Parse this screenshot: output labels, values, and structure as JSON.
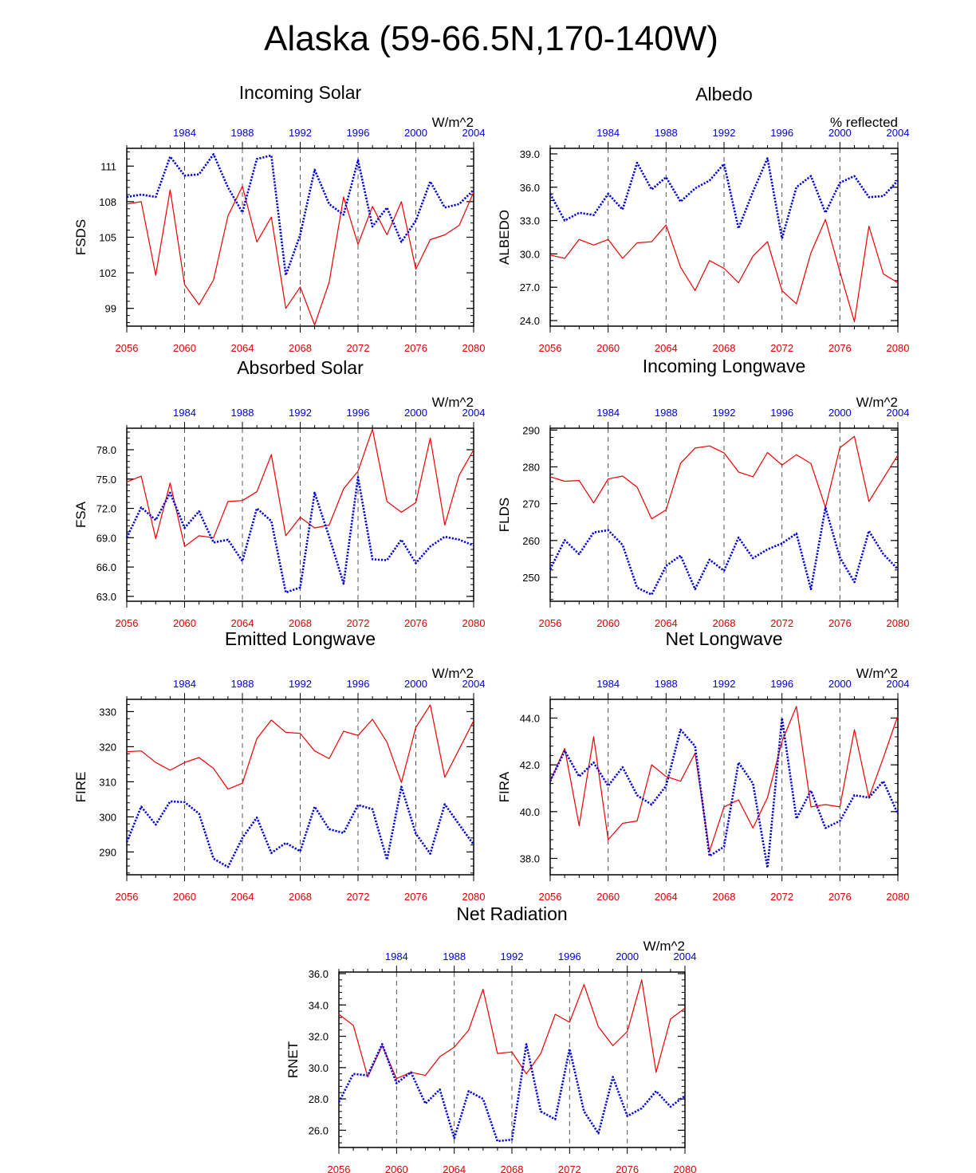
{
  "title": "Alaska (59-66.5N,170-140W)",
  "colors": {
    "future": "#ee0000",
    "historical": "#0000dd",
    "axis": "#000000",
    "grid": "#555555"
  },
  "chart_data": [
    {
      "type": "line",
      "id": "fsds",
      "title": "Incoming Solar",
      "ylabel": "FSDS",
      "units": "W/m^2",
      "ylim": [
        97.5,
        112.5
      ],
      "yticks": [
        99,
        102,
        105,
        108,
        111
      ],
      "ytick_labels": [
        "99",
        "102",
        "105",
        "108",
        "111"
      ],
      "x_bottom": {
        "range": [
          2056,
          2080
        ],
        "ticks": [
          2056,
          2060,
          2064,
          2068,
          2072,
          2076,
          2080
        ]
      },
      "x_top": {
        "range": [
          1980,
          2004
        ],
        "ticks": [
          1984,
          1988,
          1992,
          1996,
          2000,
          2004
        ]
      },
      "grid": "vertical dashed at labeled bottom ticks",
      "series": [
        {
          "style": "solid",
          "axis": "bottom",
          "values": [
            107.8,
            108.0,
            101.8,
            109.0,
            101.0,
            99.3,
            101.4,
            106.8,
            109.3,
            104.6,
            106.7,
            99.0,
            100.8,
            97.6,
            101.2,
            108.4,
            104.4,
            107.6,
            105.2,
            108.0,
            102.3,
            104.8,
            105.2,
            106.0,
            108.8
          ]
        },
        {
          "style": "dotted",
          "axis": "top",
          "values": [
            108.4,
            108.6,
            108.4,
            111.8,
            110.2,
            110.3,
            112.0,
            109.2,
            107.1,
            111.6,
            111.9,
            101.8,
            105.2,
            110.7,
            107.8,
            106.9,
            111.5,
            105.9,
            107.5,
            104.6,
            106.4,
            109.7,
            107.5,
            107.8,
            109.0
          ]
        }
      ]
    },
    {
      "type": "line",
      "id": "albedo",
      "title": "Albedo",
      "ylabel": "ALBEDO",
      "units": "% reflected",
      "ylim": [
        23.5,
        39.5
      ],
      "yticks": [
        24,
        27,
        30,
        33,
        36,
        39
      ],
      "ytick_labels": [
        "24.0",
        "27.0",
        "30.0",
        "33.0",
        "36.0",
        "39.0"
      ],
      "x_bottom": {
        "range": [
          2056,
          2080
        ],
        "ticks": [
          2056,
          2060,
          2064,
          2068,
          2072,
          2076,
          2080
        ]
      },
      "x_top": {
        "range": [
          1980,
          2004
        ],
        "ticks": [
          1984,
          1988,
          1992,
          1996,
          2000,
          2004
        ]
      },
      "grid": "vertical dashed at labeled bottom ticks",
      "series": [
        {
          "style": "solid",
          "axis": "bottom",
          "values": [
            29.9,
            29.6,
            31.3,
            30.8,
            31.3,
            29.6,
            31.0,
            31.1,
            32.6,
            28.8,
            26.7,
            29.4,
            28.7,
            27.4,
            29.8,
            31.1,
            26.7,
            25.5,
            30.1,
            33.1,
            28.4,
            23.9,
            32.5,
            28.2,
            27.4
          ]
        },
        {
          "style": "dotted",
          "axis": "top",
          "values": [
            35.4,
            33.0,
            33.7,
            33.5,
            35.4,
            34.0,
            38.2,
            35.8,
            36.9,
            34.7,
            35.9,
            36.6,
            38.1,
            32.3,
            35.6,
            38.6,
            31.4,
            36.0,
            37.0,
            33.7,
            36.4,
            37.0,
            35.1,
            35.2,
            36.6
          ]
        }
      ]
    },
    {
      "type": "line",
      "id": "fsa",
      "title": "Absorbed Solar",
      "ylabel": "FSA",
      "units": "W/m^2",
      "ylim": [
        62.5,
        80.2
      ],
      "yticks": [
        63,
        66,
        69,
        72,
        75,
        78
      ],
      "ytick_labels": [
        "63.0",
        "66.0",
        "69.0",
        "72.0",
        "75.0",
        "78.0"
      ],
      "x_bottom": {
        "range": [
          2056,
          2080
        ],
        "ticks": [
          2056,
          2060,
          2064,
          2068,
          2072,
          2076,
          2080
        ]
      },
      "x_top": {
        "range": [
          1980,
          2004
        ],
        "ticks": [
          1984,
          1988,
          1992,
          1996,
          2000,
          2004
        ]
      },
      "grid": "vertical dashed at labeled bottom ticks",
      "series": [
        {
          "style": "solid",
          "axis": "bottom",
          "values": [
            74.7,
            75.3,
            68.9,
            74.6,
            68.1,
            69.2,
            69.0,
            72.7,
            72.8,
            73.7,
            77.5,
            69.2,
            71.1,
            70.0,
            70.3,
            74.0,
            75.8,
            80.1,
            72.7,
            71.6,
            72.6,
            79.2,
            70.3,
            75.4,
            78.0
          ]
        },
        {
          "style": "dotted",
          "axis": "top",
          "values": [
            69.0,
            72.1,
            70.8,
            73.6,
            70.0,
            71.7,
            68.5,
            68.8,
            66.6,
            72.0,
            70.7,
            63.4,
            63.9,
            73.6,
            69.1,
            64.3,
            75.2,
            66.8,
            66.7,
            68.8,
            66.4,
            68.1,
            69.1,
            68.8,
            68.2
          ]
        }
      ]
    },
    {
      "type": "line",
      "id": "flds",
      "title": "Incoming Longwave",
      "ylabel": "FLDS",
      "units": "W/m^2",
      "ylim": [
        243.5,
        290.5
      ],
      "yticks": [
        250,
        260,
        270,
        280,
        290
      ],
      "ytick_labels": [
        "250",
        "260",
        "270",
        "280",
        "290"
      ],
      "x_bottom": {
        "range": [
          2056,
          2080
        ],
        "ticks": [
          2056,
          2060,
          2064,
          2068,
          2072,
          2076,
          2080
        ]
      },
      "x_top": {
        "range": [
          1980,
          2004
        ],
        "ticks": [
          1984,
          1988,
          1992,
          1996,
          2000,
          2004
        ]
      },
      "grid": "vertical dashed at labeled bottom ticks",
      "series": [
        {
          "style": "solid",
          "axis": "bottom",
          "values": [
            277.3,
            276.1,
            276.3,
            270.2,
            276.7,
            277.5,
            274.5,
            265.9,
            268.3,
            281.0,
            285.1,
            285.7,
            283.8,
            278.6,
            277.3,
            283.9,
            280.5,
            283.3,
            280.9,
            269.0,
            285.2,
            288.3,
            270.6,
            276.9,
            283.2
          ]
        },
        {
          "style": "dotted",
          "axis": "top",
          "values": [
            252.2,
            260.1,
            256.3,
            262.2,
            262.8,
            258.8,
            247.2,
            245.3,
            253.1,
            255.9,
            246.8,
            254.8,
            251.8,
            260.8,
            255.2,
            257.6,
            259.2,
            261.9,
            246.8,
            268.9,
            255.4,
            248.7,
            262.6,
            256.3,
            252.2
          ]
        }
      ]
    },
    {
      "type": "line",
      "id": "fire",
      "title": "Emitted Longwave",
      "ylabel": "FIRE",
      "units": "W/m^2",
      "ylim": [
        283.5,
        333.5
      ],
      "yticks": [
        290,
        300,
        310,
        320,
        330
      ],
      "ytick_labels": [
        "290",
        "300",
        "310",
        "320",
        "330"
      ],
      "x_bottom": {
        "range": [
          2056,
          2080
        ],
        "ticks": [
          2056,
          2060,
          2064,
          2068,
          2072,
          2076,
          2080
        ]
      },
      "x_top": {
        "range": [
          1980,
          2004
        ],
        "ticks": [
          1984,
          1988,
          1992,
          1996,
          2000,
          2004
        ]
      },
      "grid": "vertical dashed at labeled bottom ticks",
      "series": [
        {
          "style": "solid",
          "axis": "bottom",
          "values": [
            318.6,
            318.8,
            315.5,
            313.3,
            315.5,
            316.9,
            313.8,
            307.9,
            309.6,
            322.3,
            327.6,
            324.1,
            323.8,
            318.8,
            316.6,
            324.4,
            323.2,
            327.8,
            321.3,
            309.8,
            325.5,
            331.9,
            311.3,
            319.3,
            327.4
          ]
        },
        {
          "style": "dotted",
          "axis": "top",
          "values": [
            292.8,
            302.9,
            297.8,
            304.4,
            304.2,
            300.9,
            288.1,
            285.7,
            294.0,
            299.8,
            289.7,
            292.6,
            290.2,
            302.9,
            296.5,
            295.4,
            303.4,
            302.2,
            287.8,
            308.6,
            295.2,
            289.5,
            303.6,
            297.8,
            292.1
          ]
        }
      ]
    },
    {
      "type": "line",
      "id": "fira",
      "title": "Net Longwave",
      "ylabel": "FIRA",
      "units": "W/m^2",
      "ylim": [
        37.3,
        44.8
      ],
      "yticks": [
        38,
        40,
        42,
        44
      ],
      "ytick_labels": [
        "38.0",
        "40.0",
        "42.0",
        "44.0"
      ],
      "x_bottom": {
        "range": [
          2056,
          2080
        ],
        "ticks": [
          2056,
          2060,
          2064,
          2068,
          2072,
          2076,
          2080
        ]
      },
      "x_top": {
        "range": [
          1980,
          2004
        ],
        "ticks": [
          1984,
          1988,
          1992,
          1996,
          2000,
          2004
        ]
      },
      "grid": "vertical dashed at labeled bottom ticks",
      "series": [
        {
          "style": "solid",
          "axis": "bottom",
          "values": [
            41.3,
            42.7,
            39.4,
            43.2,
            38.8,
            39.5,
            39.6,
            42.0,
            41.5,
            41.3,
            42.5,
            38.3,
            40.2,
            40.5,
            39.3,
            40.6,
            43.0,
            44.5,
            40.2,
            40.3,
            40.2,
            43.5,
            40.6,
            42.3,
            44.1
          ]
        },
        {
          "style": "dotted",
          "axis": "top",
          "values": [
            41.3,
            42.6,
            41.5,
            42.1,
            41.1,
            41.9,
            40.7,
            40.3,
            41.1,
            43.5,
            42.8,
            38.1,
            38.5,
            42.1,
            41.2,
            37.6,
            44.0,
            39.7,
            40.9,
            39.3,
            39.6,
            40.7,
            40.6,
            41.3,
            39.9
          ]
        }
      ]
    },
    {
      "type": "line",
      "id": "rnet",
      "title": "Net Radiation",
      "ylabel": "RNET",
      "units": "W/m^2",
      "ylim": [
        24.9,
        36.1
      ],
      "yticks": [
        26,
        28,
        30,
        32,
        34,
        36
      ],
      "ytick_labels": [
        "26.0",
        "28.0",
        "30.0",
        "32.0",
        "34.0",
        "36.0"
      ],
      "x_bottom": {
        "range": [
          2056,
          2080
        ],
        "ticks": [
          2056,
          2060,
          2064,
          2068,
          2072,
          2076,
          2080
        ]
      },
      "x_top": {
        "range": [
          1980,
          2004
        ],
        "ticks": [
          1984,
          1988,
          1992,
          1996,
          2000,
          2004
        ]
      },
      "grid": "vertical dashed at labeled bottom ticks",
      "series": [
        {
          "style": "solid",
          "axis": "bottom",
          "values": [
            33.4,
            32.7,
            29.4,
            31.4,
            29.3,
            29.7,
            29.5,
            30.7,
            31.3,
            32.4,
            35.0,
            30.9,
            31.0,
            29.6,
            30.9,
            33.4,
            32.9,
            35.3,
            32.6,
            31.4,
            32.3,
            35.6,
            29.7,
            33.1,
            33.8
          ]
        },
        {
          "style": "dotted",
          "axis": "top",
          "values": [
            27.8,
            29.6,
            29.5,
            31.5,
            29.0,
            29.7,
            27.7,
            28.6,
            25.5,
            28.5,
            28.0,
            25.3,
            25.4,
            31.5,
            27.2,
            26.7,
            31.2,
            27.2,
            25.8,
            29.4,
            26.9,
            27.4,
            28.5,
            27.5,
            28.2
          ]
        }
      ]
    }
  ]
}
